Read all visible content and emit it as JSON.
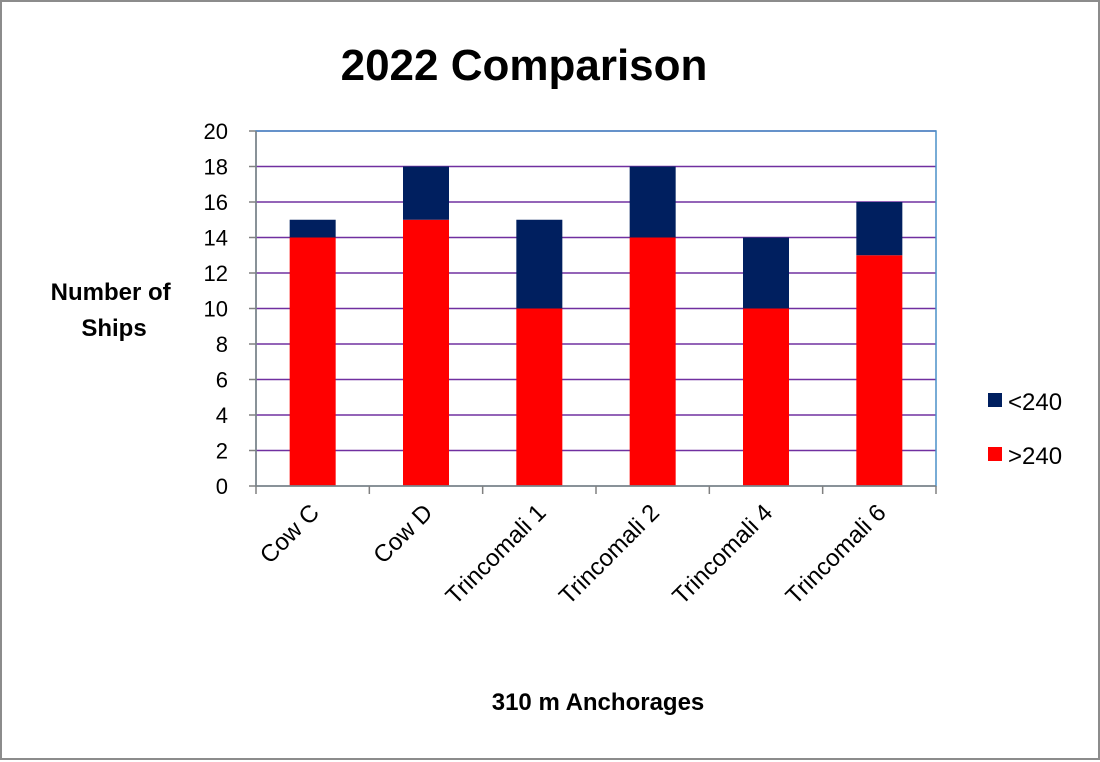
{
  "chart_data": {
    "type": "bar",
    "stacked": true,
    "title": "2022 Comparison",
    "xlabel": "310 m Anchorages",
    "ylabel": [
      "Number of",
      "Ships"
    ],
    "categories": [
      "Cow C",
      "Cow D",
      "Trincomali 1",
      "Trincomali 2",
      "Trincomali 4",
      "Trincomali 6"
    ],
    "series": [
      {
        "name": ">240",
        "color": "#ff0000",
        "values": [
          14,
          15,
          10,
          14,
          10,
          13
        ]
      },
      {
        "name": "<240",
        "color": "#001f5f",
        "values": [
          1,
          3,
          5,
          4,
          4,
          3
        ]
      }
    ],
    "ylim": [
      0,
      20
    ],
    "y_ticks": [
      "0",
      "2",
      "4",
      "6",
      "8",
      "10",
      "12",
      "14",
      "16",
      "18",
      "20"
    ],
    "grid": true,
    "grid_color": "#7030a0",
    "plot_border_color": "#4a90c8",
    "legend_position": "right",
    "legend_order": [
      "<240",
      ">240"
    ]
  }
}
